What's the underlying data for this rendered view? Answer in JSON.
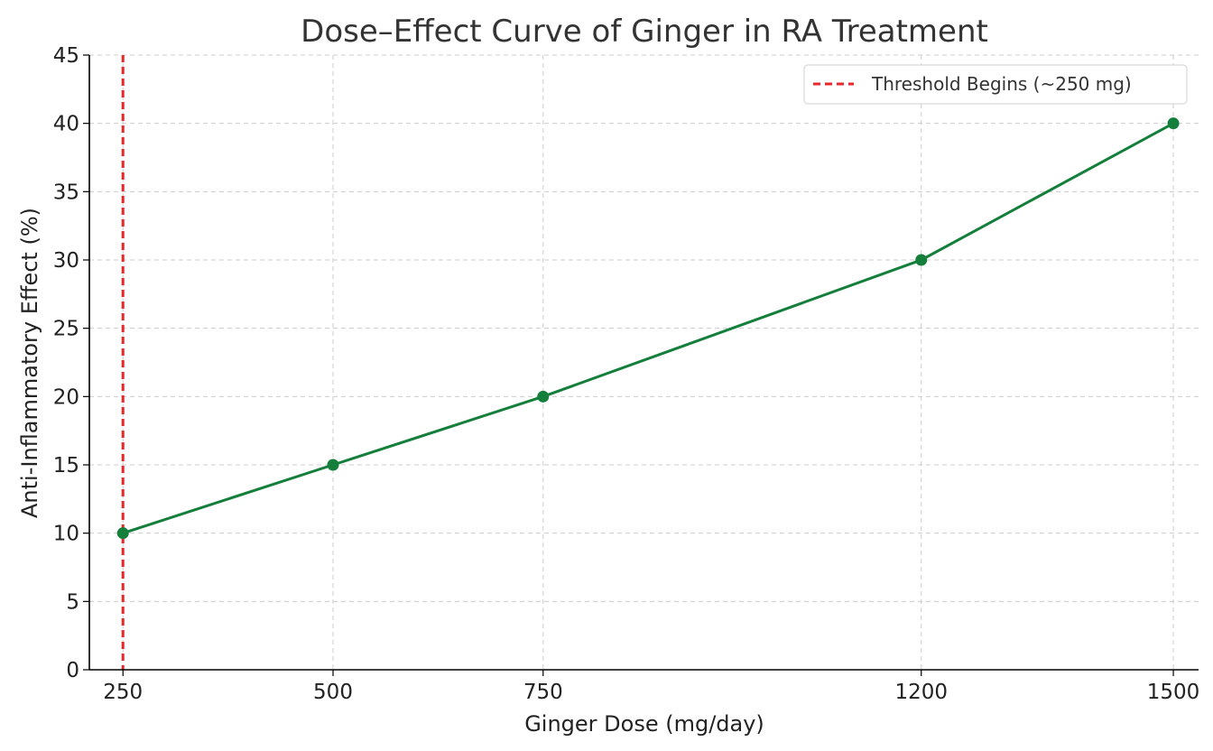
{
  "chart_data": {
    "type": "line",
    "title": "Dose–Effect Curve of Ginger in RA Treatment",
    "xlabel": "Ginger Dose (mg/day)",
    "ylabel": "Anti-Inflammatory Effect (%)",
    "x_scale": "linear",
    "xlim": [
      210,
      1530
    ],
    "ylim": [
      0,
      45
    ],
    "x_ticks": [
      250,
      500,
      750,
      1200,
      1500
    ],
    "x_tick_labels": [
      "250",
      "500",
      "750",
      "1200",
      "1500"
    ],
    "y_ticks": [
      0,
      5,
      10,
      15,
      20,
      25,
      30,
      35,
      40,
      45
    ],
    "y_tick_labels": [
      "0",
      "5",
      "10",
      "15",
      "20",
      "25",
      "30",
      "35",
      "40",
      "45"
    ],
    "grid": true,
    "legend_position": "top-right",
    "series": [
      {
        "x": [
          250,
          500,
          750,
          1200,
          1500
        ],
        "values": [
          10,
          15,
          20,
          30,
          40
        ],
        "color": "#137f3b",
        "marker": "circle"
      }
    ],
    "reference_lines": [
      {
        "orientation": "vertical",
        "x": 250,
        "label": "Threshold Begins (~250 mg)",
        "color": "#e8262b",
        "style": "dashed"
      }
    ]
  }
}
